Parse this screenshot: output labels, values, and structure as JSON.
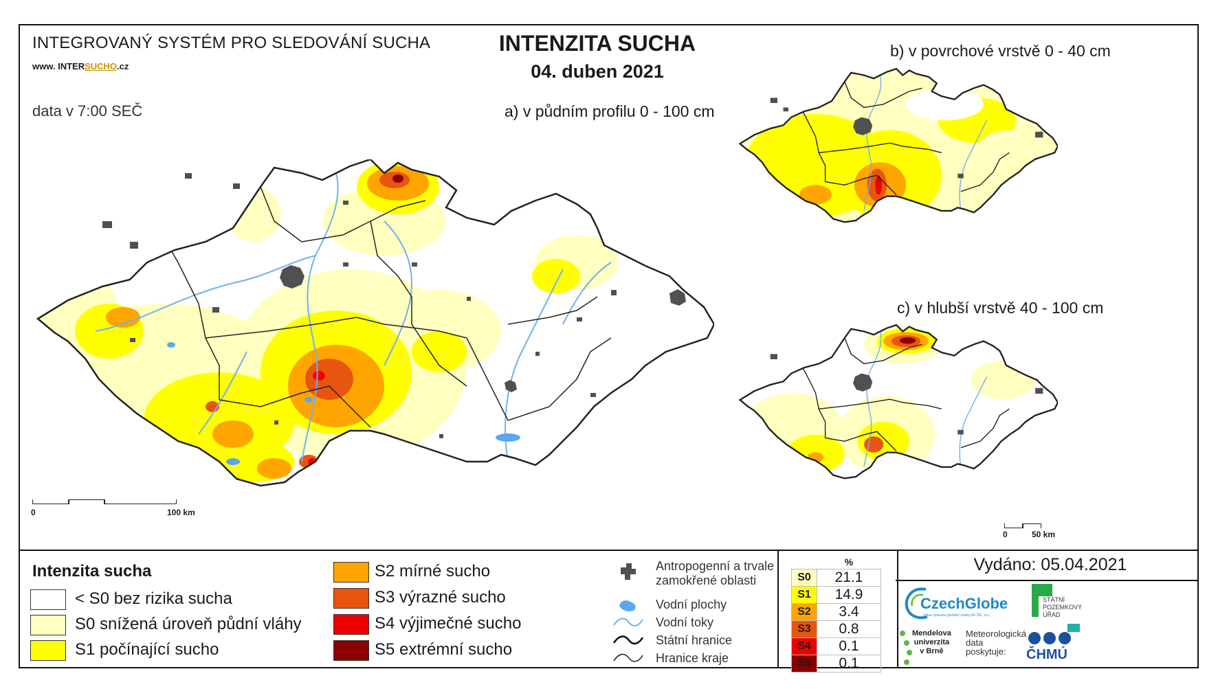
{
  "header": {
    "system": "INTEGROVANÝ SYSTÉM PRO SLEDOVÁNÍ SUCHA",
    "web_prefix": "www. INTER",
    "web_highlight": "SUCHO",
    "web_suffix": ".cz",
    "data_time": "data v 7:00 SEČ",
    "title": "INTENZITA SUCHA",
    "date": "04. duben 2021"
  },
  "maps": {
    "a_label": "a) v půdním profilu 0 - 100 cm",
    "b_label": "b) v povrchové vrstvě 0 - 40 cm",
    "c_label": "c) v hlubší vrstvě 40 - 100 cm",
    "scale_a": {
      "zero": "0",
      "end": "100 km"
    },
    "scale_c": {
      "zero": "0",
      "end": "50 km"
    }
  },
  "colors": {
    "s_none": "#ffffff",
    "s0": "#ffffc0",
    "s1": "#ffff00",
    "s2": "#ffa500",
    "s3": "#e8550e",
    "s4": "#ee0000",
    "s5": "#8b0000",
    "urban": "#505050",
    "water": "#5aa8f0",
    "rivers": "#6fb2ef"
  },
  "legend": {
    "title": "Intenzita sucha",
    "classes": [
      {
        "label": "< S0 bez rizika sucha",
        "color": "#ffffff"
      },
      {
        "label": "S0 snížená úroveň půdní vláhy",
        "color": "#ffffc0"
      },
      {
        "label": "S1 počínající sucho",
        "color": "#ffff00"
      },
      {
        "label": "S2 mírné sucho",
        "color": "#ffa500"
      },
      {
        "label": "S3 výrazné sucho",
        "color": "#e8550e"
      },
      {
        "label": "S4 výjimečné sucho",
        "color": "#ee0000"
      },
      {
        "label": "S5 extrémní sucho",
        "color": "#8b0000"
      }
    ],
    "symbols": [
      {
        "label": "Antropogenní a trvale\nzamokřené oblasti",
        "icon": "urban-area-icon"
      },
      {
        "label": "Vodní plochy",
        "icon": "water-body-icon"
      },
      {
        "label": "Vodní toky",
        "icon": "river-icon"
      },
      {
        "label": "Státní hranice",
        "icon": "state-border-icon"
      },
      {
        "label": "Hranice kraje",
        "icon": "region-border-icon"
      }
    ]
  },
  "stats": {
    "unit": "%",
    "rows": [
      {
        "cls": "S0",
        "value": "21.1",
        "color": "#ffffc0"
      },
      {
        "cls": "S1",
        "value": "14.9",
        "color": "#ffff00"
      },
      {
        "cls": "S2",
        "value": "3.4",
        "color": "#ffa500"
      },
      {
        "cls": "S3",
        "value": "0.8",
        "color": "#e8550e"
      },
      {
        "cls": "S4",
        "value": "0.1",
        "color": "#ee0000"
      },
      {
        "cls": "S5",
        "value": "0.1",
        "color": "#8b0000"
      }
    ]
  },
  "issued": "Vydáno: 05.04.2021",
  "logos": {
    "czechglobe": "CzechGlobe",
    "czechglobe_sub": "Ústav výzkumu globální změny AV ČR, v.v.i.",
    "spu": [
      "STÁTNÍ",
      "POZEMKOVÝ",
      "ÚŘAD"
    ],
    "mendelu": [
      "Mendelova",
      "univerzita",
      "v Brně"
    ],
    "meteo": [
      "Meteorologická",
      "data",
      "poskytuje:"
    ],
    "chmu": "ČHMÚ"
  }
}
